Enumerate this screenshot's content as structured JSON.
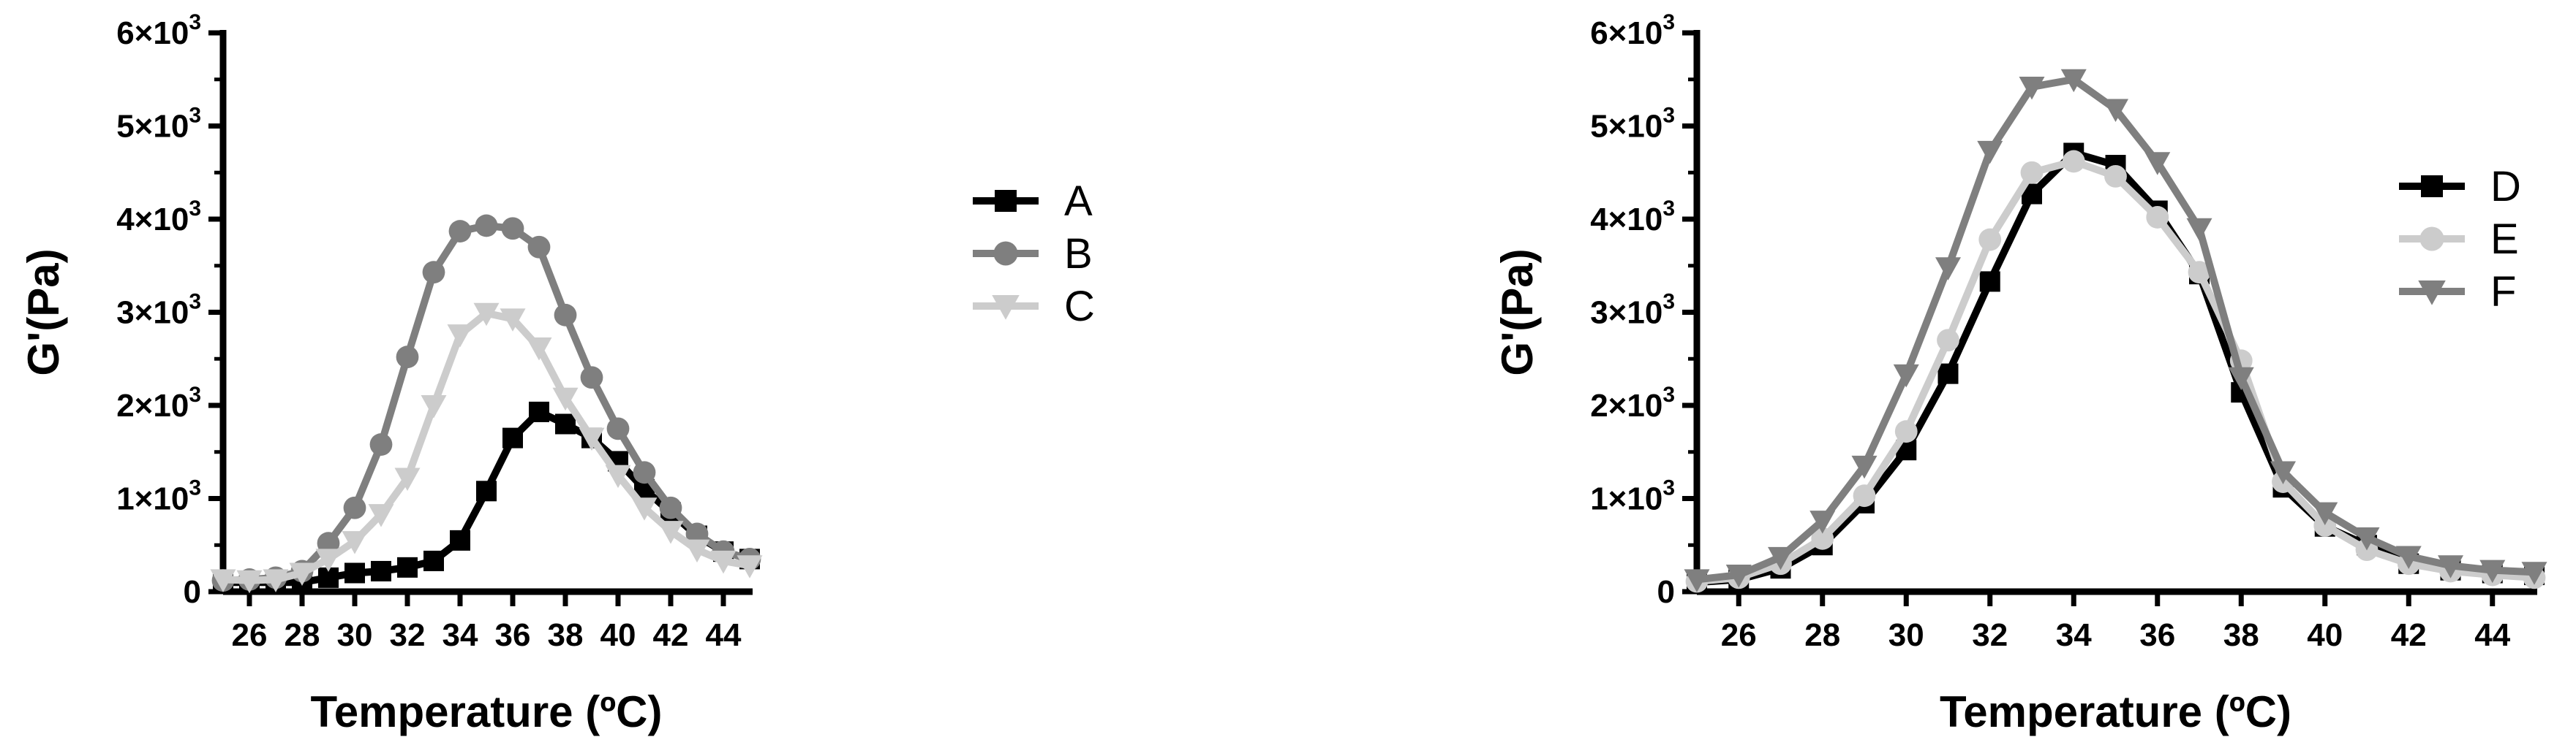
{
  "chart_data": [
    {
      "type": "line",
      "xlabel": "Temperature (ºC)",
      "ylabel": "G'(Pa)",
      "xlim": [
        25,
        45
      ],
      "ylim": [
        0,
        6000
      ],
      "xticks": [
        26,
        28,
        30,
        32,
        34,
        36,
        38,
        40,
        42,
        44
      ],
      "yticks": [
        {
          "value": 0,
          "mant": "0",
          "exp": ""
        },
        {
          "value": 1000,
          "mant": "1×10",
          "exp": "3"
        },
        {
          "value": 2000,
          "mant": "2×10",
          "exp": "3"
        },
        {
          "value": 3000,
          "mant": "3×10",
          "exp": "3"
        },
        {
          "value": 4000,
          "mant": "4×10",
          "exp": "3"
        },
        {
          "value": 5000,
          "mant": "5×10",
          "exp": "3"
        },
        {
          "value": 6000,
          "mant": "6×10",
          "exp": "3"
        }
      ],
      "grid": false,
      "legend": "right",
      "x": [
        25,
        26,
        27,
        28,
        29,
        30,
        31,
        32,
        33,
        34,
        35,
        36,
        37,
        38,
        39,
        40,
        41,
        42,
        43,
        44,
        45
      ],
      "series": [
        {
          "name": "A",
          "color": "#000000",
          "marker": "square",
          "values": [
            100,
            100,
            100,
            100,
            150,
            200,
            220,
            260,
            330,
            550,
            1080,
            1650,
            1930,
            1800,
            1650,
            1400,
            1100,
            850,
            600,
            430,
            350
          ]
        },
        {
          "name": "B",
          "color": "#7f7f7f",
          "marker": "circle",
          "values": [
            120,
            130,
            150,
            220,
            520,
            900,
            1580,
            2520,
            3430,
            3870,
            3930,
            3900,
            3700,
            2970,
            2300,
            1750,
            1280,
            900,
            620,
            430,
            350
          ]
        },
        {
          "name": "C",
          "color": "#cccccc",
          "marker": "triangle-down",
          "values": [
            130,
            120,
            130,
            200,
            350,
            540,
            830,
            1220,
            2000,
            2760,
            2990,
            2930,
            2620,
            2080,
            1650,
            1250,
            900,
            650,
            450,
            330,
            280
          ]
        }
      ]
    },
    {
      "type": "line",
      "xlabel": "Temperature (ºC)",
      "ylabel": "G'(Pa)",
      "xlim": [
        25,
        45
      ],
      "ylim": [
        0,
        6000
      ],
      "xticks": [
        26,
        28,
        30,
        32,
        34,
        36,
        38,
        40,
        42,
        44
      ],
      "yticks": [
        {
          "value": 0,
          "mant": "0",
          "exp": ""
        },
        {
          "value": 1000,
          "mant": "1×10",
          "exp": "3"
        },
        {
          "value": 2000,
          "mant": "2×10",
          "exp": "3"
        },
        {
          "value": 3000,
          "mant": "3×10",
          "exp": "3"
        },
        {
          "value": 4000,
          "mant": "4×10",
          "exp": "3"
        },
        {
          "value": 5000,
          "mant": "5×10",
          "exp": "3"
        },
        {
          "value": 6000,
          "mant": "6×10",
          "exp": "3"
        }
      ],
      "grid": false,
      "legend": "right",
      "x": [
        25,
        26,
        27,
        28,
        29,
        30,
        31,
        32,
        33,
        34,
        35,
        36,
        37,
        38,
        39,
        40,
        41,
        42,
        43,
        44,
        45
      ],
      "series": [
        {
          "name": "D",
          "color": "#000000",
          "marker": "square",
          "values": [
            100,
            130,
            250,
            500,
            950,
            1520,
            2340,
            3330,
            4270,
            4710,
            4580,
            4090,
            3410,
            2140,
            1120,
            700,
            500,
            300,
            230,
            200,
            180
          ]
        },
        {
          "name": "E",
          "color": "#cccccc",
          "marker": "circle",
          "values": [
            110,
            150,
            300,
            570,
            1030,
            1720,
            2700,
            3780,
            4500,
            4620,
            4460,
            4020,
            3430,
            2480,
            1180,
            710,
            450,
            300,
            220,
            180,
            150
          ]
        },
        {
          "name": "F",
          "color": "#7f7f7f",
          "marker": "triangle-down",
          "values": [
            130,
            180,
            370,
            760,
            1350,
            2330,
            3480,
            4730,
            5420,
            5500,
            5180,
            4610,
            3900,
            2300,
            1290,
            850,
            580,
            380,
            280,
            230,
            210
          ]
        }
      ]
    }
  ]
}
